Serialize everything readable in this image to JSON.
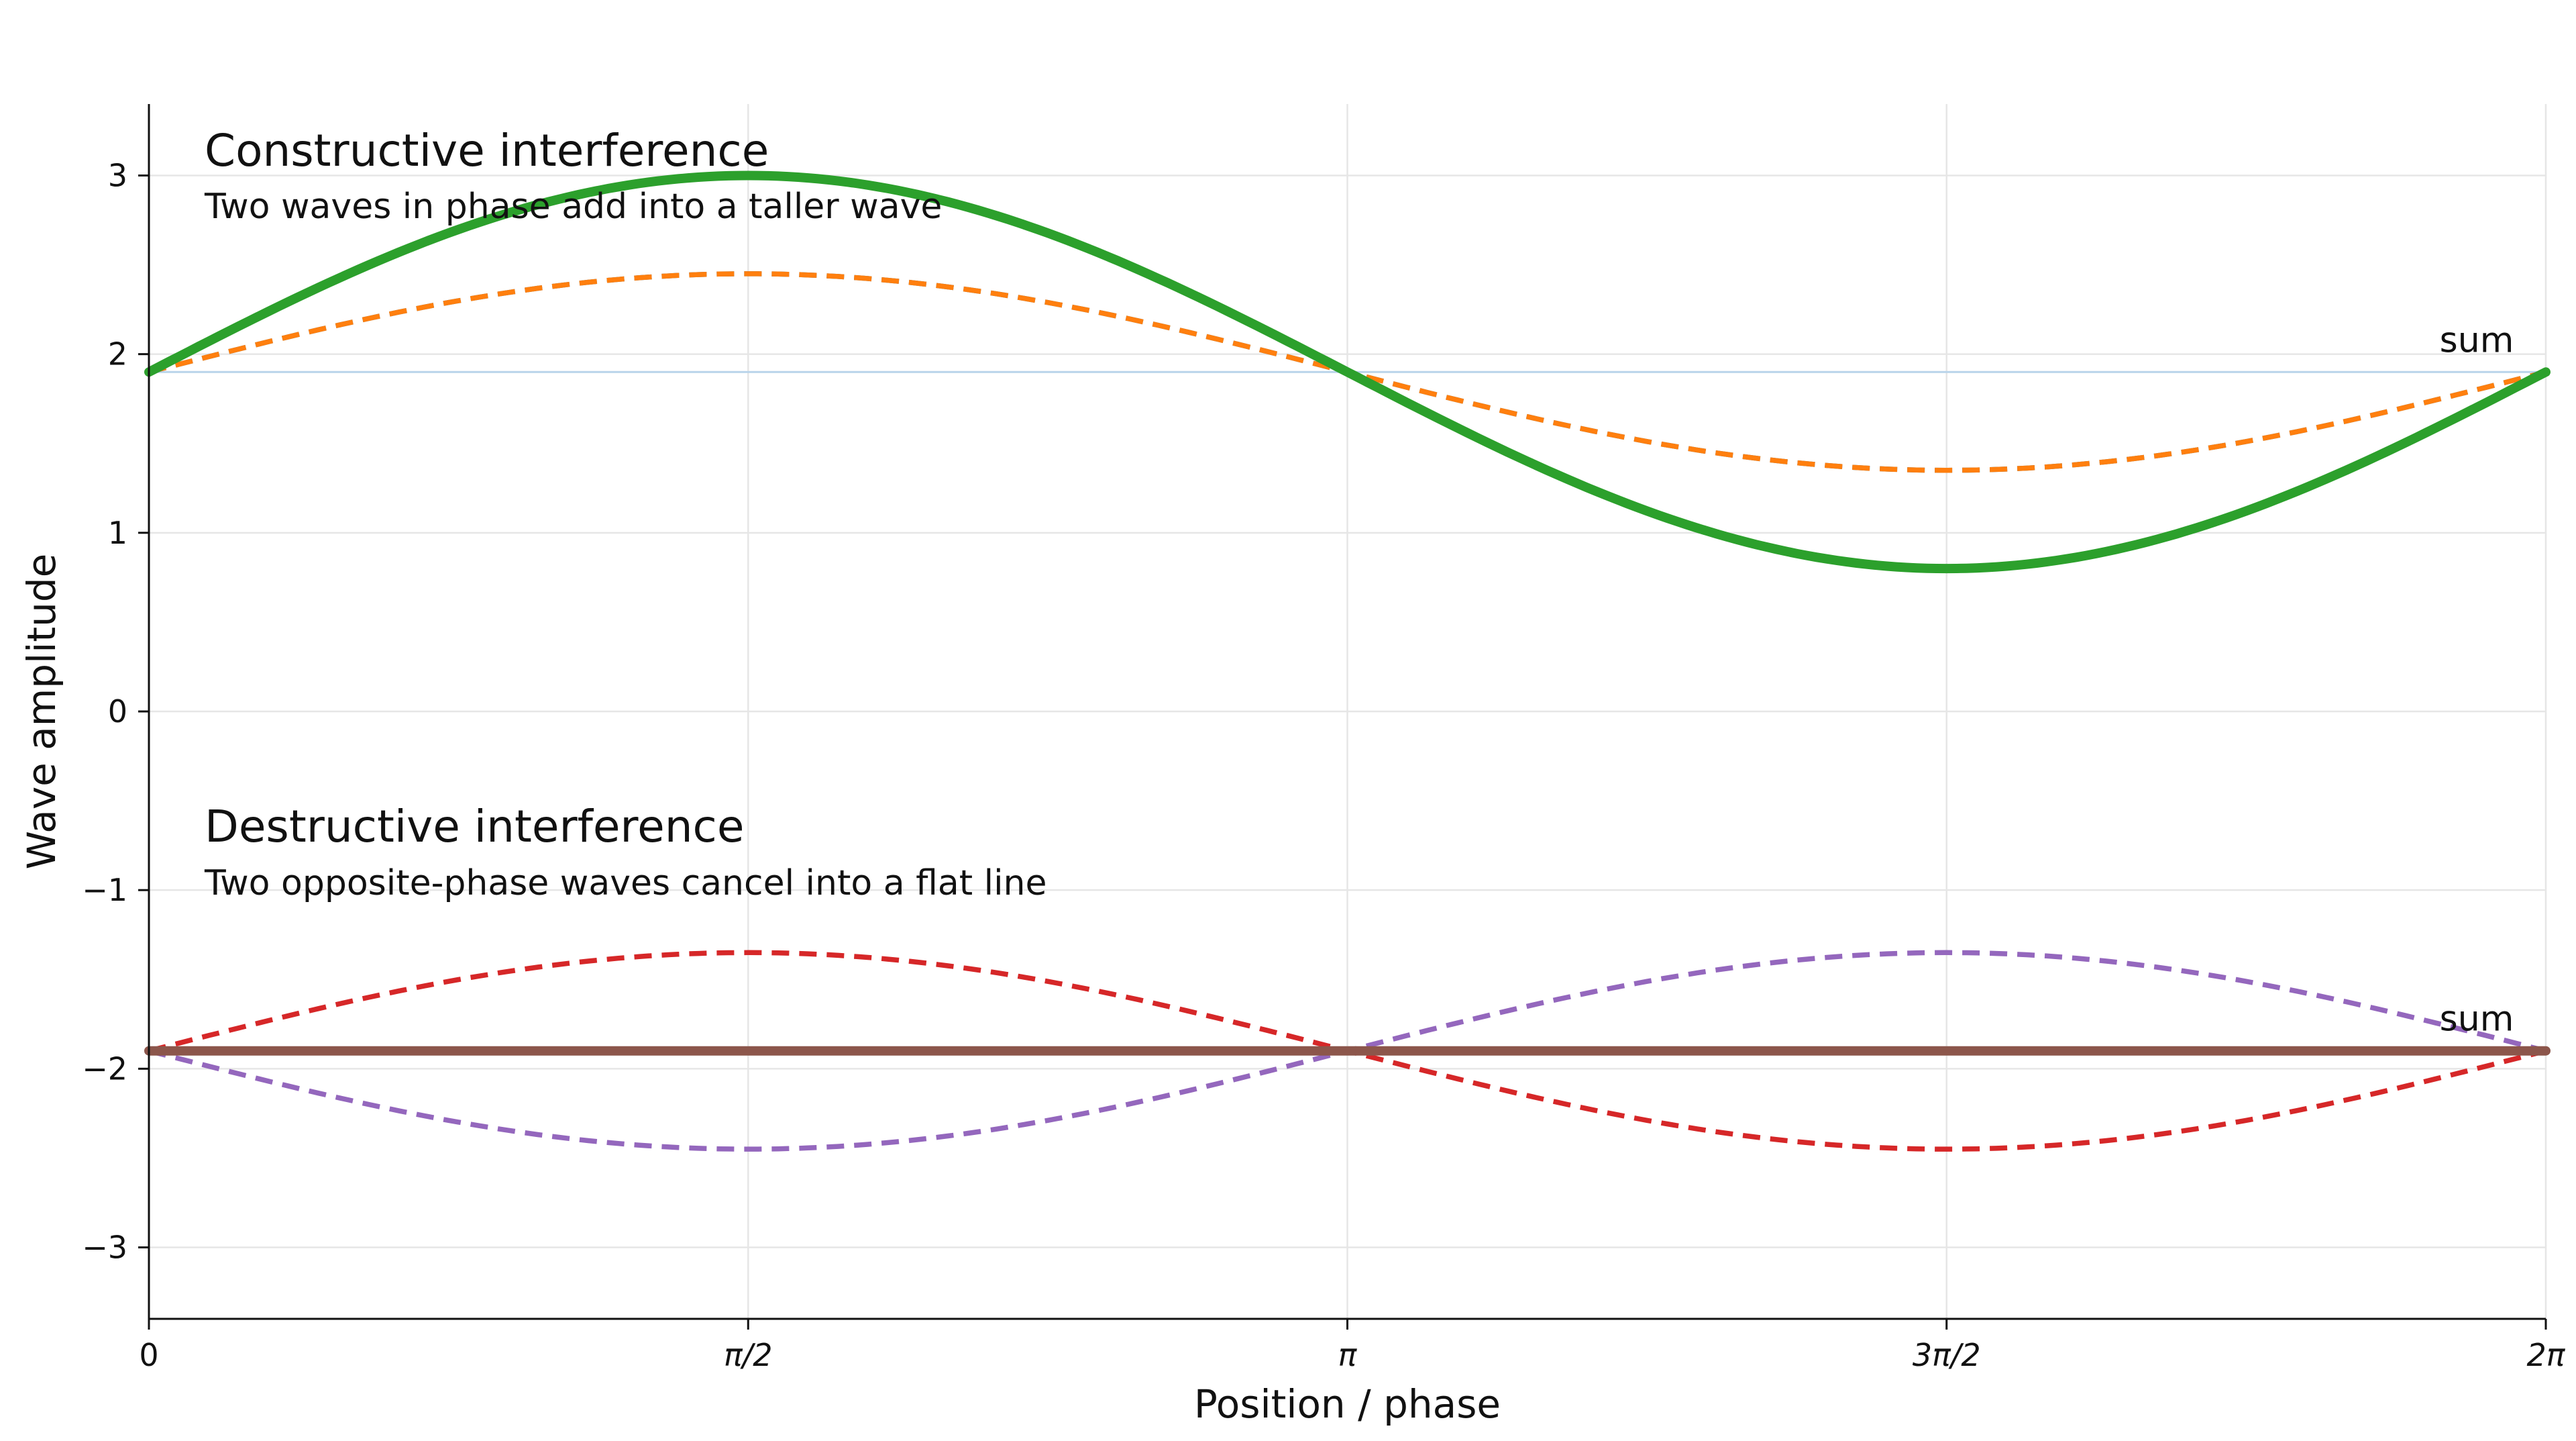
{
  "chart_data": {
    "type": "line",
    "title": "",
    "xlabel": "Position / phase",
    "ylabel": "Wave amplitude",
    "xlim": [
      0,
      6.283185
    ],
    "ylim": [
      -3.4,
      3.4
    ],
    "grid": true,
    "x_ticks": [
      {
        "value": 0,
        "label": "0"
      },
      {
        "value": 1.570796,
        "label": "π/2"
      },
      {
        "value": 3.141593,
        "label": "π"
      },
      {
        "value": 4.712389,
        "label": "3π/2"
      },
      {
        "value": 6.283185,
        "label": "2π"
      }
    ],
    "y_ticks": [
      {
        "value": 3,
        "label": "3"
      },
      {
        "value": 2,
        "label": "2"
      },
      {
        "value": 1,
        "label": "1"
      },
      {
        "value": 0,
        "label": "0"
      },
      {
        "value": -1,
        "label": "−1"
      },
      {
        "value": -2,
        "label": "−2"
      },
      {
        "value": -3,
        "label": "−3"
      }
    ],
    "panels": [
      {
        "title": "Constructive interference",
        "subtitle": "Two waves in phase add into a taller wave",
        "baseline": 1.9,
        "sum_label": "sum",
        "series": [
          {
            "role": "wave-a",
            "offset": 1.9,
            "amplitude": 0.55,
            "phase": 0,
            "color": "#1f77b4",
            "style": "dashed"
          },
          {
            "role": "wave-b",
            "offset": 1.9,
            "amplitude": 0.55,
            "phase": 0,
            "color": "#ff7f0e",
            "style": "dashed"
          },
          {
            "role": "sum",
            "offset": 1.9,
            "amplitude": 1.1,
            "phase": 0,
            "color": "#2ca02c",
            "style": "solid"
          }
        ]
      },
      {
        "title": "Destructive interference",
        "subtitle": "Two opposite-phase waves cancel into a flat line",
        "baseline": -1.9,
        "sum_label": "sum",
        "series": [
          {
            "role": "wave-a",
            "offset": -1.9,
            "amplitude": 0.55,
            "phase": 0,
            "color": "#d62728",
            "style": "dashed"
          },
          {
            "role": "wave-b",
            "offset": -1.9,
            "amplitude": -0.55,
            "phase": 0,
            "color": "#9467bd",
            "style": "dashed"
          },
          {
            "role": "sum",
            "offset": -1.9,
            "amplitude": 0,
            "phase": 0,
            "color": "#8c564b",
            "style": "solid"
          }
        ]
      }
    ]
  }
}
